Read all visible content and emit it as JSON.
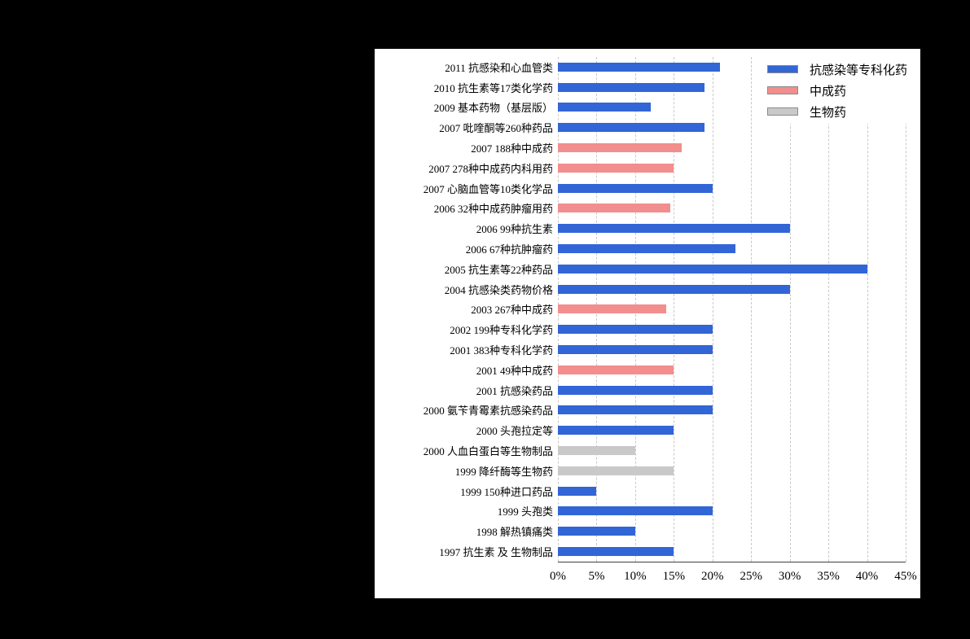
{
  "panel": {
    "background": "#ffffff"
  },
  "chart_data": {
    "type": "bar",
    "orientation": "horizontal",
    "title": "",
    "xlabel": "",
    "ylabel": "",
    "xlim": [
      0,
      45
    ],
    "x_ticks": [
      "0%",
      "5%",
      "10%",
      "15%",
      "20%",
      "25%",
      "30%",
      "35%",
      "40%",
      "45%"
    ],
    "grid": "vertical-dashed",
    "legend_position": "top-right",
    "series_colors": {
      "chem": "#3265D6",
      "tcm": "#F28E8E",
      "bio": "#C9C9C9"
    },
    "legend": [
      {
        "label": "抗感染等专科化药",
        "series": "chem"
      },
      {
        "label": "中成药",
        "series": "tcm"
      },
      {
        "label": "生物药",
        "series": "bio"
      }
    ],
    "items": [
      {
        "label": "2011 抗感染和心血管类",
        "value": 21,
        "series": "chem"
      },
      {
        "label": "2010 抗生素等17类化学药",
        "value": 19,
        "series": "chem"
      },
      {
        "label": "2009 基本药物（基层版）",
        "value": 12,
        "series": "chem"
      },
      {
        "label": "2007 吡喹酮等260种药品",
        "value": 19,
        "series": "chem"
      },
      {
        "label": "2007 188种中成药",
        "value": 16,
        "series": "tcm"
      },
      {
        "label": "2007 278种中成药内科用药",
        "value": 15,
        "series": "tcm"
      },
      {
        "label": "2007 心脑血管等10类化学品",
        "value": 20,
        "series": "chem"
      },
      {
        "label": "2006 32种中成药肿瘤用药",
        "value": 14.5,
        "series": "tcm"
      },
      {
        "label": "2006 99种抗生素",
        "value": 30,
        "series": "chem"
      },
      {
        "label": "2006 67种抗肿瘤药",
        "value": 23,
        "series": "chem"
      },
      {
        "label": "2005 抗生素等22种药品",
        "value": 40,
        "series": "chem"
      },
      {
        "label": "2004 抗感染类药物价格",
        "value": 30,
        "series": "chem"
      },
      {
        "label": "2003 267种中成药",
        "value": 14,
        "series": "tcm"
      },
      {
        "label": "2002 199种专科化学药",
        "value": 20,
        "series": "chem"
      },
      {
        "label": "2001 383种专科化学药",
        "value": 20,
        "series": "chem"
      },
      {
        "label": "2001 49种中成药",
        "value": 15,
        "series": "tcm"
      },
      {
        "label": "2001 抗感染药品",
        "value": 20,
        "series": "chem"
      },
      {
        "label": "2000 氨苄青霉素抗感染药品",
        "value": 20,
        "series": "chem"
      },
      {
        "label": "2000 头孢拉定等",
        "value": 15,
        "series": "chem"
      },
      {
        "label": "2000 人血白蛋白等生物制品",
        "value": 10,
        "series": "bio"
      },
      {
        "label": "1999 降纤酶等生物药",
        "value": 15,
        "series": "bio"
      },
      {
        "label": "1999 150种进口药品",
        "value": 5,
        "series": "chem"
      },
      {
        "label": "1999 头孢类",
        "value": 20,
        "series": "chem"
      },
      {
        "label": "1998 解热镇痛类",
        "value": 10,
        "series": "chem"
      },
      {
        "label": "1997 抗生素 及 生物制品",
        "value": 15,
        "series": "chem"
      }
    ]
  }
}
